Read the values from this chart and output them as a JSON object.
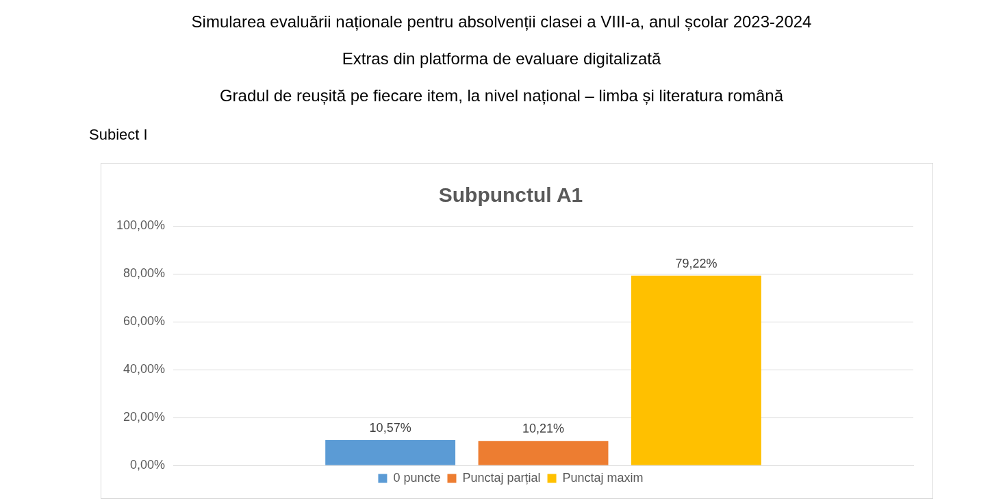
{
  "chart_data": {
    "type": "bar",
    "title": "Subpunctul A1",
    "annotations": [
      "Simularea evaluării naționale pentru absolvenții clasei a VIII-a, anul școlar 2023-2024",
      "Extras din platforma de evaluare digitalizată",
      "Gradul de reușită pe fiecare item, la nivel național – limba și literatura română",
      "Subiect I"
    ],
    "categories": [
      null
    ],
    "series": [
      {
        "name": "0 puncte",
        "color": "#5b9bd5",
        "values": [
          10.57
        ],
        "value_labels": [
          "10,57%"
        ]
      },
      {
        "name": "Punctaj parțial",
        "color": "#ed7d31",
        "values": [
          10.21
        ],
        "value_labels": [
          "10,21%"
        ]
      },
      {
        "name": "Punctaj maxim",
        "color": "#ffc000",
        "values": [
          79.22
        ],
        "value_labels": [
          "79,22%"
        ]
      }
    ],
    "ylim": [
      0,
      100
    ],
    "yticks": [
      {
        "value": 0,
        "label": "0,00%"
      },
      {
        "value": 20,
        "label": "20,00%"
      },
      {
        "value": 40,
        "label": "40,00%"
      },
      {
        "value": 60,
        "label": "60,00%"
      },
      {
        "value": 80,
        "label": "80,00%"
      },
      {
        "value": 100,
        "label": "100,00%"
      }
    ],
    "grid": "y",
    "legend": "bottom"
  }
}
